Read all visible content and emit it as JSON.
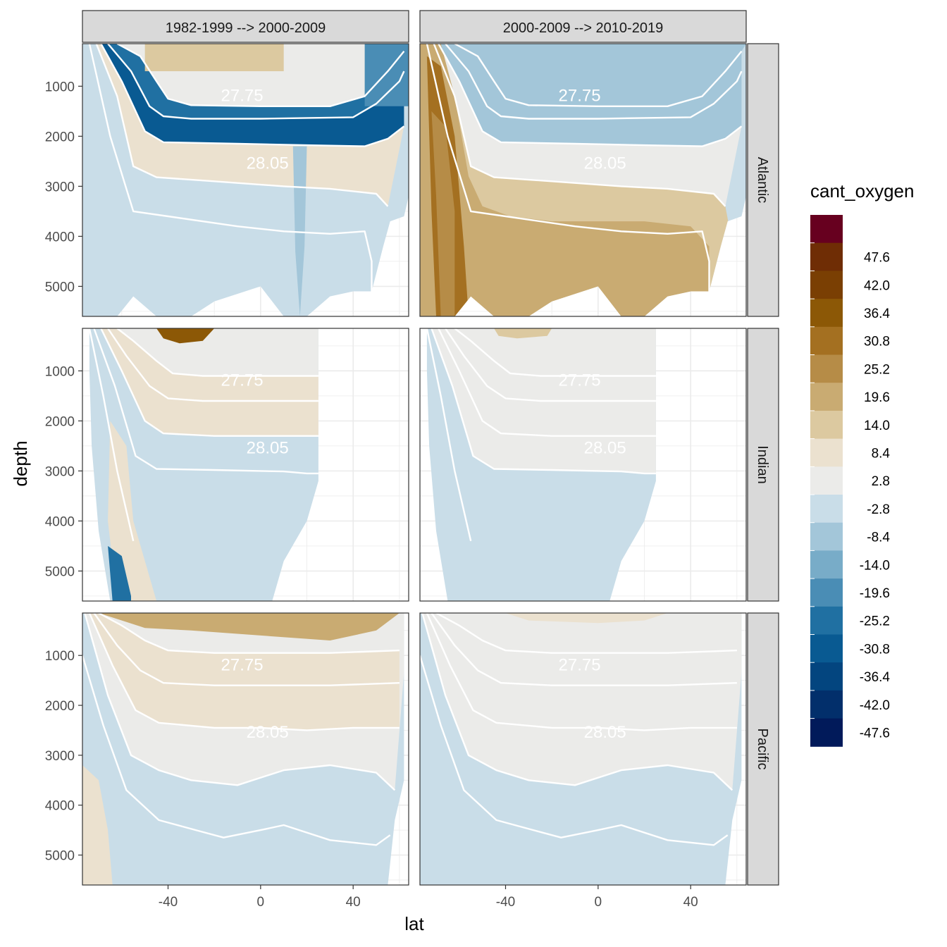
{
  "chart_data": {
    "type": "heatmap",
    "facet_layout": "grid 3 rows x 2 columns",
    "xlabel": "lat",
    "ylabel": "depth",
    "x_ticks": [
      -40,
      0,
      40
    ],
    "x_tick_labels": [
      "-40",
      "0",
      "40"
    ],
    "xlim": [
      -77,
      64
    ],
    "y_ticks": [
      1000,
      2000,
      3000,
      4000,
      5000
    ],
    "y_tick_labels": [
      "1000",
      "2000",
      "3000",
      "4000",
      "5000"
    ],
    "ylim": [
      5600,
      150
    ],
    "columns": [
      "1982-1999 --> 2000-2009",
      "2000-2009 --> 2010-2019"
    ],
    "rows": [
      "Atlantic",
      "Indian",
      "Pacific"
    ],
    "contour_labels": [
      {
        "value": "27.75",
        "lat": -8,
        "depth": 1300
      },
      {
        "value": "28.05",
        "lat": 3,
        "depth": 2650
      }
    ],
    "legend": {
      "title": "cant_oxygen",
      "position": "right",
      "bins": [
        {
          "label": "",
          "color": "#67001f"
        },
        {
          "label": "47.6",
          "color": "#6f2d05"
        },
        {
          "label": "42.0",
          "color": "#7a3f03"
        },
        {
          "label": "36.4",
          "color": "#8c5806"
        },
        {
          "label": "30.8",
          "color": "#a47021"
        },
        {
          "label": "25.2",
          "color": "#b68c47"
        },
        {
          "label": "19.6",
          "color": "#c9ab72"
        },
        {
          "label": "14.0",
          "color": "#dcc9a0"
        },
        {
          "label": "8.4",
          "color": "#ebe1cf"
        },
        {
          "label": "2.8",
          "color": "#ebebe9"
        },
        {
          "label": "-2.8",
          "color": "#c9dde8"
        },
        {
          "label": "-8.4",
          "color": "#a3c6d9"
        },
        {
          "label": "-14.0",
          "color": "#78acc8"
        },
        {
          "label": "-19.6",
          "color": "#4a8db5"
        },
        {
          "label": "-25.2",
          "color": "#2070a2"
        },
        {
          "label": "-30.8",
          "color": "#095a92"
        },
        {
          "label": "-36.4",
          "color": "#03457f"
        },
        {
          "label": "-42.0",
          "color": "#022f6b"
        },
        {
          "label": "-47.6",
          "color": "#011a5a"
        }
      ]
    }
  }
}
